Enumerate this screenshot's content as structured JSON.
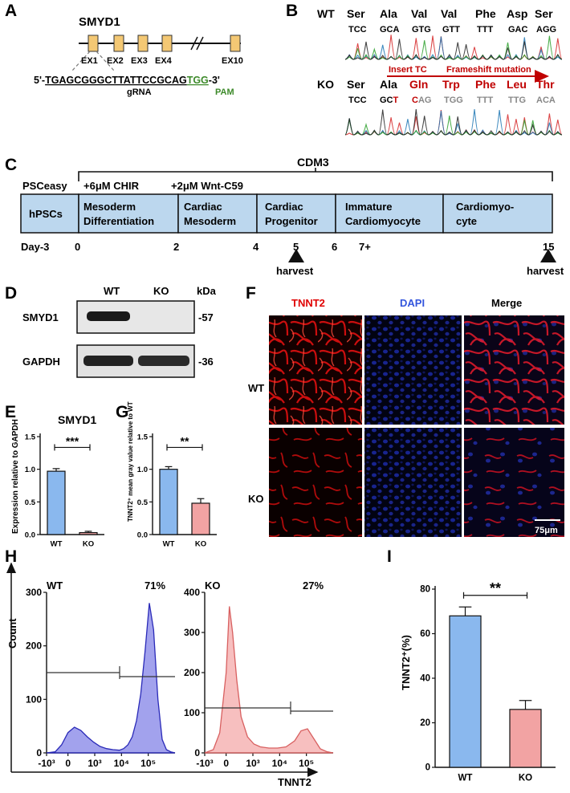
{
  "figure": {
    "panel_letters": {
      "A": "A",
      "B": "B",
      "C": "C",
      "D": "D",
      "E": "E",
      "F": "F",
      "G": "G",
      "H": "H",
      "I": "I"
    },
    "panelA": {
      "gene": "SMYD1",
      "exons": [
        "EX1",
        "EX2",
        "EX3",
        "EX4",
        "EX10"
      ],
      "seq_prefix": "5'-",
      "seq_grna": "TGAGCGGGCTTATTCCGCAG",
      "seq_pam": "TGG",
      "seq_suffix": "-3'",
      "grna_label": "gRNA",
      "pam_label": "PAM"
    },
    "panelB": {
      "wt_label": "WT",
      "ko_label": "KO",
      "wt_aa": [
        "Ser",
        "Ala",
        "Val",
        "Val",
        "Phe",
        "Asp",
        "Ser"
      ],
      "wt_codons": [
        "TCC",
        "GCA",
        "GTG",
        "GTT",
        "TTT",
        "GAC",
        "AGG"
      ],
      "ko_aa_black": [
        "Ser",
        "Ala"
      ],
      "ko_aa_red": [
        "Gln",
        "Trp",
        "Phe",
        "Leu",
        "Thr"
      ],
      "ko_codons": [
        "TCC",
        "GC",
        "T",
        "C",
        "AG",
        "TGG",
        "TTT",
        "TTG",
        "ACA"
      ],
      "insert_label": "Insert TC",
      "frameshift_label": "Frameshift mutation",
      "colors": {
        "red": "#c00000",
        "gray": "#888888"
      }
    },
    "panelC": {
      "cdm3": "CDM3",
      "psceasy": "PSCeasy",
      "chir": "+6μM CHIR",
      "wnt": "+2μM Wnt-C59",
      "stages": [
        "hPSCs",
        "Mesoderm",
        "Differentiation",
        "Cardiac",
        "Mesoderm",
        "Cardiac",
        "Progenitor",
        "Immature",
        "Cardiomyocyte",
        "Cardiomyo-",
        "cyte"
      ],
      "days": [
        "Day-3",
        "0",
        "2",
        "4",
        "5",
        "6",
        "7+",
        "15"
      ],
      "harvest": "harvest",
      "box_color": "#bcd7ee"
    },
    "panelD": {
      "wt": "WT",
      "ko": "KO",
      "kda": "kDa",
      "rows": [
        {
          "name": "SMYD1",
          "mw": "-57"
        },
        {
          "name": "GAPDH",
          "mw": "-36"
        }
      ]
    },
    "panelE": {
      "title": "SMYD1",
      "ylabel": "Expression relative to GAPDH",
      "sig": "***"
    },
    "panelG": {
      "ylabel": "TNNT2⁺ mean gray value relative to WT",
      "sig": "**"
    },
    "panelF": {
      "cols": [
        "TNNT2",
        "DAPI",
        "Merge"
      ],
      "rows": [
        "WT",
        "KO"
      ],
      "scale": "75μm",
      "col_colors": [
        "#e00000",
        "#3355dd",
        "#111111"
      ]
    },
    "panelH": {
      "ylabel": "Count",
      "xlabel": "TNNT2",
      "wt": "WT",
      "ko": "KO",
      "wt_pct": "71%",
      "ko_pct": "27%",
      "x_ticks": [
        "-10³",
        "0",
        "10³",
        "10⁴",
        "10⁵"
      ],
      "wt_color": "#5c5ce6",
      "ko_color": "#f08a8a"
    },
    "panelI": {
      "ylabel": "TNNT2⁺(%)",
      "sig": "**"
    }
  },
  "chart_data": [
    {
      "type": "bar",
      "panel": "E",
      "title": "SMYD1",
      "categories": [
        "WT",
        "KO"
      ],
      "values": [
        0.97,
        0.03
      ],
      "errors": [
        0.04,
        0.02
      ],
      "colors": [
        "#8ab8ee",
        "#f2a3a3"
      ],
      "ylabel": "Expression relative to GAPDH",
      "ylim": [
        0,
        1.5
      ],
      "yticks": [
        "0.0",
        "0.5",
        "1.0",
        "1.5"
      ]
    },
    {
      "type": "bar",
      "panel": "G",
      "categories": [
        "WT",
        "KO"
      ],
      "values": [
        1.0,
        0.48
      ],
      "errors": [
        0.04,
        0.07
      ],
      "colors": [
        "#8ab8ee",
        "#f2a3a3"
      ],
      "ylabel": "TNNT2⁺ mean gray value relative to WT",
      "ylim": [
        0,
        1.5
      ],
      "yticks": [
        "0.0",
        "0.5",
        "1.0",
        "1.5"
      ]
    },
    {
      "type": "bar",
      "panel": "I",
      "categories": [
        "WT",
        "KO"
      ],
      "values": [
        68,
        26
      ],
      "errors": [
        4,
        4
      ],
      "colors": [
        "#8ab8ee",
        "#f2a3a3"
      ],
      "ylabel": "TNNT2⁺(%)",
      "ylim": [
        0,
        80
      ],
      "yticks": [
        "0",
        "20",
        "40",
        "60",
        "80"
      ]
    },
    {
      "type": "area",
      "panel": "H-WT",
      "ylim": [
        0,
        300
      ],
      "yticks": [
        "0",
        "100",
        "200",
        "300"
      ],
      "x": [
        -1,
        -0.6,
        -0.3,
        0,
        0.3,
        0.6,
        0.9,
        1.2,
        1.5,
        1.8,
        2.1,
        2.4,
        2.6,
        2.8,
        3.0,
        3.2,
        3.4,
        3.6,
        3.8,
        4.0,
        4.2,
        4.4,
        4.6,
        4.8,
        5.0
      ],
      "y": [
        0,
        2,
        15,
        38,
        48,
        42,
        30,
        20,
        12,
        8,
        6,
        5,
        8,
        15,
        30,
        60,
        110,
        190,
        280,
        230,
        100,
        25,
        6,
        2,
        0
      ]
    },
    {
      "type": "area",
      "panel": "H-KO",
      "ylim": [
        0,
        400
      ],
      "yticks": [
        "0",
        "100",
        "200",
        "300",
        "400"
      ],
      "x": [
        -1,
        -0.6,
        -0.3,
        0,
        0.15,
        0.3,
        0.5,
        0.7,
        1.0,
        1.3,
        1.6,
        2.0,
        2.4,
        2.8,
        3.2,
        3.5,
        3.8,
        4.1,
        4.4,
        4.7,
        5.0
      ],
      "y": [
        0,
        8,
        50,
        200,
        365,
        300,
        180,
        90,
        40,
        22,
        15,
        12,
        12,
        15,
        30,
        55,
        60,
        35,
        10,
        3,
        0
      ]
    }
  ]
}
